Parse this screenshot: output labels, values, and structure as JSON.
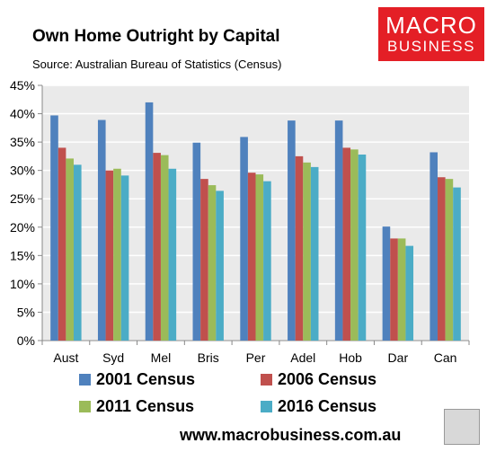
{
  "header": {
    "title": "Own Home Outright by Capital",
    "subtitle": "Source: Australian Bureau of Statistics (Census)"
  },
  "logo": {
    "line1": "MACRO",
    "line2": "BUSINESS",
    "color": "#e41f26"
  },
  "footer": {
    "url": "www.macrobusiness.com.au"
  },
  "chart_data": {
    "type": "bar",
    "categories": [
      "Aust",
      "Syd",
      "Mel",
      "Bris",
      "Per",
      "Adel",
      "Hob",
      "Dar",
      "Can"
    ],
    "series": [
      {
        "name": "2001 Census",
        "color": "#4f81bd",
        "values": [
          39.7,
          38.9,
          42.0,
          34.9,
          35.9,
          38.8,
          38.8,
          20.1,
          33.2
        ]
      },
      {
        "name": "2006 Census",
        "color": "#c0504d",
        "values": [
          34.0,
          30.0,
          33.1,
          28.5,
          29.6,
          32.5,
          34.0,
          18.0,
          28.8
        ]
      },
      {
        "name": "2011 Census",
        "color": "#9bbb59",
        "values": [
          32.1,
          30.3,
          32.7,
          27.4,
          29.3,
          31.4,
          33.7,
          18.0,
          28.5
        ]
      },
      {
        "name": "2016 Census",
        "color": "#4bacc6",
        "values": [
          31.0,
          29.1,
          30.3,
          26.4,
          28.1,
          30.6,
          32.8,
          16.7,
          27.0
        ]
      }
    ],
    "ylim": [
      0,
      45
    ],
    "yticks": [
      "0%",
      "5%",
      "10%",
      "15%",
      "20%",
      "25%",
      "30%",
      "35%",
      "40%",
      "45%"
    ],
    "grid": true,
    "legend_position": "bottom"
  }
}
